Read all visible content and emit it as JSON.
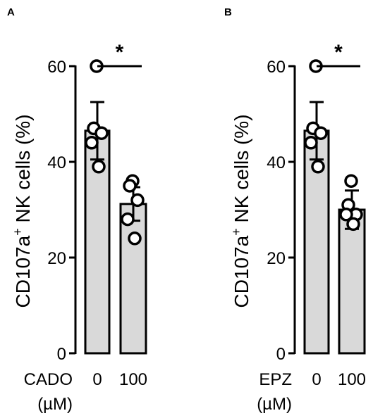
{
  "chart_data": [
    {
      "type": "bar",
      "panel": "A",
      "ylabel_main": "CD107a",
      "ylabel_sup": "+",
      "ylabel_rest": " NK cells (%)",
      "xlabel_line1": "CADO",
      "xlabel_line2": "(µM)",
      "categories": [
        "0",
        "100"
      ],
      "values": [
        46.5,
        31.2
      ],
      "sd": [
        6.0,
        3.5
      ],
      "points": [
        [
          60,
          47,
          46,
          44,
          39
        ],
        [
          36,
          35,
          32,
          28,
          24
        ]
      ],
      "yticks": [
        0,
        20,
        40,
        60
      ],
      "ylim": [
        0,
        60
      ],
      "significance": "*",
      "bar_color": "#d9d9d9"
    },
    {
      "type": "bar",
      "panel": "B",
      "ylabel_main": "CD107a",
      "ylabel_sup": "+",
      "ylabel_rest": " NK cells (%)",
      "xlabel_line1": "EPZ",
      "xlabel_line2": "(µM)",
      "categories": [
        "0",
        "100"
      ],
      "values": [
        46.5,
        30.0
      ],
      "sd": [
        6.0,
        4.0
      ],
      "points": [
        [
          60,
          47,
          46,
          44,
          39
        ],
        [
          36,
          31,
          29,
          29,
          27
        ]
      ],
      "yticks": [
        0,
        20,
        40,
        60
      ],
      "ylim": [
        0,
        60
      ],
      "significance": "*",
      "bar_color": "#d9d9d9"
    }
  ]
}
